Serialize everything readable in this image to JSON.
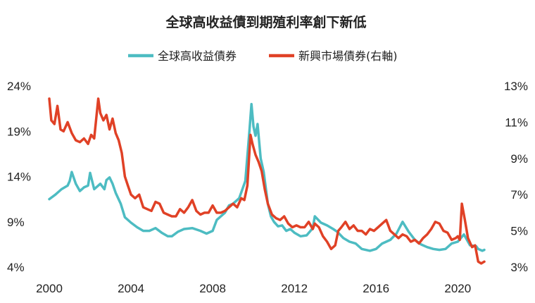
{
  "chart_data": {
    "type": "line",
    "title": "全球高收益債到期殖利率創下新低",
    "x_ticks": [
      "2000",
      "2004",
      "2008",
      "2012",
      "2016",
      "2020"
    ],
    "xlim": [
      2000,
      2021.3
    ],
    "y_left": {
      "ticks": [
        "24%",
        "19%",
        "14%",
        "9%",
        "4%"
      ],
      "lim": [
        4,
        24
      ]
    },
    "y_right": {
      "ticks": [
        "13%",
        "11%",
        "9%",
        "7%",
        "5%",
        "3%"
      ],
      "lim": [
        3,
        13
      ]
    },
    "grid": false,
    "legend_position": "top",
    "series": [
      {
        "name": "全球高收益債券",
        "axis": "left",
        "color": "#4dbcc2",
        "points": [
          [
            2000.0,
            11.5
          ],
          [
            2000.3,
            12.0
          ],
          [
            2000.6,
            12.6
          ],
          [
            2000.9,
            13.0
          ],
          [
            2001.0,
            13.5
          ],
          [
            2001.1,
            14.5
          ],
          [
            2001.3,
            13.2
          ],
          [
            2001.5,
            12.4
          ],
          [
            2001.7,
            12.8
          ],
          [
            2001.9,
            13.0
          ],
          [
            2002.0,
            14.4
          ],
          [
            2002.2,
            12.6
          ],
          [
            2002.5,
            13.2
          ],
          [
            2002.7,
            12.6
          ],
          [
            2002.8,
            13.6
          ],
          [
            2002.95,
            13.9
          ],
          [
            2003.1,
            13.2
          ],
          [
            2003.25,
            12.2
          ],
          [
            2003.5,
            11.0
          ],
          [
            2003.7,
            9.5
          ],
          [
            2004.0,
            8.9
          ],
          [
            2004.3,
            8.4
          ],
          [
            2004.6,
            8.0
          ],
          [
            2004.9,
            8.0
          ],
          [
            2005.2,
            8.3
          ],
          [
            2005.5,
            7.8
          ],
          [
            2005.8,
            7.4
          ],
          [
            2006.0,
            7.4
          ],
          [
            2006.3,
            7.9
          ],
          [
            2006.6,
            8.2
          ],
          [
            2007.0,
            8.3
          ],
          [
            2007.4,
            8.0
          ],
          [
            2007.7,
            7.7
          ],
          [
            2008.0,
            8.0
          ],
          [
            2008.2,
            9.2
          ],
          [
            2008.4,
            9.6
          ],
          [
            2008.6,
            10.0
          ],
          [
            2008.8,
            10.8
          ],
          [
            2009.0,
            11.0
          ],
          [
            2009.3,
            11.6
          ],
          [
            2009.6,
            13.5
          ],
          [
            2009.8,
            19.0
          ],
          [
            2009.9,
            22.0
          ],
          [
            2010.0,
            19.5
          ],
          [
            2010.1,
            18.5
          ],
          [
            2010.2,
            19.8
          ],
          [
            2010.35,
            16.0
          ],
          [
            2010.5,
            14.5
          ],
          [
            2010.7,
            11.0
          ],
          [
            2010.85,
            9.6
          ],
          [
            2011.0,
            9.0
          ],
          [
            2011.2,
            8.5
          ],
          [
            2011.4,
            8.6
          ],
          [
            2011.6,
            8.0
          ],
          [
            2011.8,
            8.2
          ],
          [
            2012.0,
            7.8
          ],
          [
            2012.3,
            7.4
          ],
          [
            2012.6,
            7.5
          ],
          [
            2012.9,
            8.3
          ],
          [
            2013.0,
            9.6
          ],
          [
            2013.3,
            8.9
          ],
          [
            2013.6,
            8.6
          ],
          [
            2013.9,
            8.2
          ],
          [
            2014.1,
            7.9
          ],
          [
            2014.4,
            7.2
          ],
          [
            2014.7,
            6.8
          ],
          [
            2015.0,
            6.6
          ],
          [
            2015.3,
            6.0
          ],
          [
            2015.7,
            5.8
          ],
          [
            2016.0,
            6.0
          ],
          [
            2016.3,
            6.6
          ],
          [
            2016.7,
            7.0
          ],
          [
            2017.0,
            7.7
          ],
          [
            2017.3,
            9.0
          ],
          [
            2017.6,
            7.9
          ],
          [
            2017.9,
            7.0
          ],
          [
            2018.2,
            6.5
          ],
          [
            2018.5,
            6.2
          ],
          [
            2018.8,
            6.0
          ],
          [
            2019.1,
            5.9
          ],
          [
            2019.4,
            6.0
          ],
          [
            2019.7,
            6.6
          ],
          [
            2020.0,
            6.8
          ],
          [
            2020.3,
            7.6
          ],
          [
            2020.6,
            6.4
          ],
          [
            2020.9,
            6.3
          ],
          [
            2021.0,
            6.0
          ],
          [
            2021.2,
            5.8
          ],
          [
            2021.3,
            5.9
          ]
        ]
      },
      {
        "name": "新興市場債券(右軸)",
        "axis": "right",
        "color": "#e04126",
        "points": [
          [
            2000.0,
            12.3
          ],
          [
            2000.1,
            11.1
          ],
          [
            2000.25,
            10.9
          ],
          [
            2000.4,
            11.9
          ],
          [
            2000.55,
            10.6
          ],
          [
            2000.7,
            10.5
          ],
          [
            2000.9,
            11.0
          ],
          [
            2001.1,
            10.4
          ],
          [
            2001.3,
            10.0
          ],
          [
            2001.5,
            9.9
          ],
          [
            2001.7,
            10.1
          ],
          [
            2001.9,
            9.8
          ],
          [
            2002.05,
            10.3
          ],
          [
            2002.2,
            10.1
          ],
          [
            2002.3,
            11.2
          ],
          [
            2002.4,
            12.3
          ],
          [
            2002.5,
            11.5
          ],
          [
            2002.65,
            11.1
          ],
          [
            2002.8,
            11.4
          ],
          [
            2002.95,
            10.6
          ],
          [
            2003.1,
            11.2
          ],
          [
            2003.25,
            10.4
          ],
          [
            2003.4,
            10.0
          ],
          [
            2003.55,
            9.3
          ],
          [
            2003.7,
            8.0
          ],
          [
            2003.85,
            7.5
          ],
          [
            2004.0,
            7.0
          ],
          [
            2004.2,
            6.8
          ],
          [
            2004.4,
            7.0
          ],
          [
            2004.6,
            6.3
          ],
          [
            2004.8,
            6.2
          ],
          [
            2005.0,
            6.1
          ],
          [
            2005.2,
            6.6
          ],
          [
            2005.4,
            6.5
          ],
          [
            2005.6,
            6.0
          ],
          [
            2005.8,
            5.9
          ],
          [
            2006.0,
            5.8
          ],
          [
            2006.2,
            5.8
          ],
          [
            2006.4,
            6.2
          ],
          [
            2006.6,
            6.0
          ],
          [
            2006.8,
            6.3
          ],
          [
            2007.0,
            6.7
          ],
          [
            2007.2,
            6.1
          ],
          [
            2007.4,
            5.9
          ],
          [
            2007.6,
            6.0
          ],
          [
            2007.8,
            6.0
          ],
          [
            2008.0,
            6.4
          ],
          [
            2008.2,
            6.0
          ],
          [
            2008.4,
            6.0
          ],
          [
            2008.6,
            6.1
          ],
          [
            2008.8,
            6.3
          ],
          [
            2009.0,
            6.5
          ],
          [
            2009.2,
            6.3
          ],
          [
            2009.4,
            6.8
          ],
          [
            2009.55,
            6.7
          ],
          [
            2009.7,
            7.5
          ],
          [
            2009.85,
            10.3
          ],
          [
            2009.95,
            9.8
          ],
          [
            2010.1,
            9.2
          ],
          [
            2010.25,
            8.8
          ],
          [
            2010.4,
            8.3
          ],
          [
            2010.55,
            7.3
          ],
          [
            2010.7,
            6.5
          ],
          [
            2010.9,
            5.9
          ],
          [
            2011.1,
            5.7
          ],
          [
            2011.3,
            5.6
          ],
          [
            2011.5,
            5.8
          ],
          [
            2011.7,
            5.4
          ],
          [
            2011.9,
            5.2
          ],
          [
            2012.1,
            5.3
          ],
          [
            2012.3,
            5.2
          ],
          [
            2012.5,
            5.2
          ],
          [
            2012.7,
            5.5
          ],
          [
            2012.9,
            5.1
          ],
          [
            2013.0,
            5.4
          ],
          [
            2013.2,
            5.2
          ],
          [
            2013.4,
            4.7
          ],
          [
            2013.6,
            4.4
          ],
          [
            2013.8,
            4.0
          ],
          [
            2014.0,
            4.2
          ],
          [
            2014.15,
            5.0
          ],
          [
            2014.3,
            5.2
          ],
          [
            2014.5,
            5.5
          ],
          [
            2014.7,
            5.1
          ],
          [
            2014.9,
            5.3
          ],
          [
            2015.1,
            5.0
          ],
          [
            2015.3,
            5.0
          ],
          [
            2015.5,
            4.8
          ],
          [
            2015.7,
            5.1
          ],
          [
            2015.9,
            5.0
          ],
          [
            2016.1,
            5.2
          ],
          [
            2016.3,
            5.4
          ],
          [
            2016.5,
            5.6
          ],
          [
            2016.7,
            5.0
          ],
          [
            2016.9,
            4.8
          ],
          [
            2017.1,
            4.6
          ],
          [
            2017.3,
            4.8
          ],
          [
            2017.5,
            4.7
          ],
          [
            2017.7,
            4.4
          ],
          [
            2017.9,
            4.5
          ],
          [
            2018.1,
            4.3
          ],
          [
            2018.3,
            4.6
          ],
          [
            2018.5,
            4.8
          ],
          [
            2018.7,
            5.1
          ],
          [
            2018.9,
            5.5
          ],
          [
            2019.1,
            5.4
          ],
          [
            2019.3,
            5.0
          ],
          [
            2019.5,
            4.9
          ],
          [
            2019.7,
            4.5
          ],
          [
            2019.9,
            4.6
          ],
          [
            2020.0,
            4.7
          ],
          [
            2020.1,
            4.5
          ],
          [
            2020.2,
            6.5
          ],
          [
            2020.35,
            5.6
          ],
          [
            2020.5,
            4.6
          ],
          [
            2020.7,
            4.1
          ],
          [
            2020.85,
            4.2
          ],
          [
            2021.0,
            3.3
          ],
          [
            2021.15,
            3.2
          ],
          [
            2021.3,
            3.3
          ]
        ]
      }
    ]
  }
}
